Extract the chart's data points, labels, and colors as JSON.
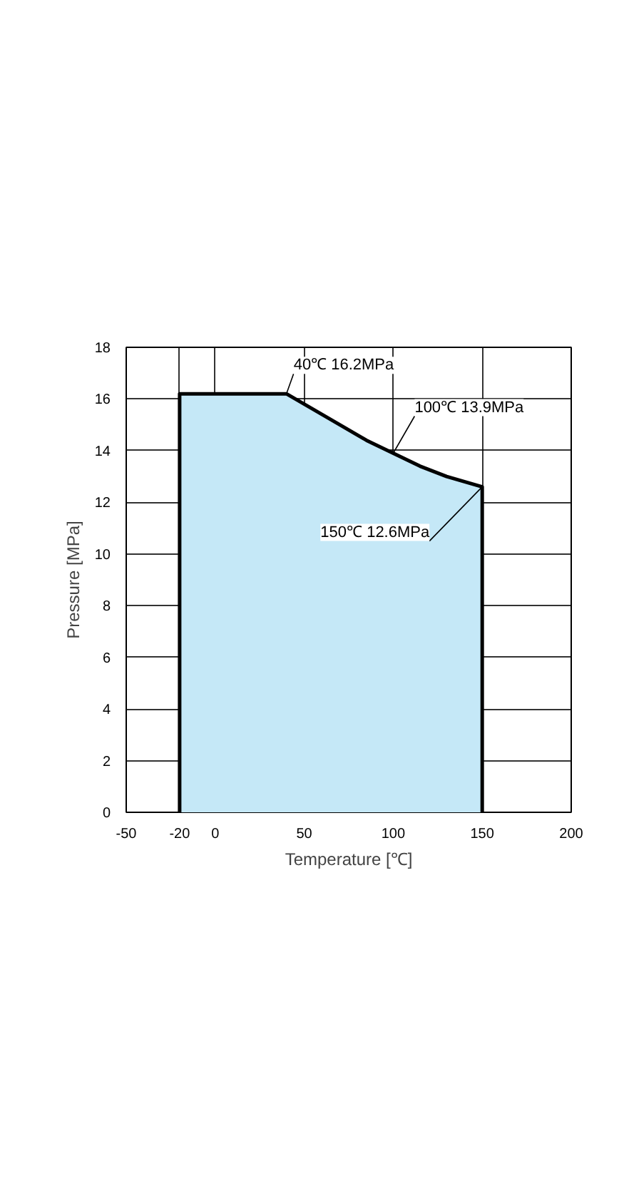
{
  "chart_data": {
    "type": "area",
    "xlabel": "Temperature [℃]",
    "ylabel": "Pressure [MPa]",
    "x": [
      -20,
      -20,
      40,
      55,
      70,
      85,
      100,
      115,
      130,
      150,
      150
    ],
    "values": [
      0,
      16.2,
      16.2,
      15.6,
      15.0,
      14.4,
      13.9,
      13.4,
      13.0,
      12.6,
      0
    ],
    "color": "#c5e8f7",
    "xlim": [
      -50,
      200
    ],
    "ylim": [
      0,
      18
    ],
    "xticks": [
      -50,
      -20,
      0,
      50,
      100,
      150,
      200
    ],
    "yticks": [
      0,
      2,
      4,
      6,
      8,
      10,
      12,
      14,
      16,
      18
    ],
    "grid": true,
    "annotations": [
      {
        "text": "40℃ 16.2MPa",
        "x": 40,
        "y": 16.2
      },
      {
        "text": "100℃ 13.9MPa",
        "x": 100,
        "y": 13.9
      },
      {
        "text": "150℃ 12.6MPa",
        "x": 150,
        "y": 12.6
      }
    ]
  }
}
